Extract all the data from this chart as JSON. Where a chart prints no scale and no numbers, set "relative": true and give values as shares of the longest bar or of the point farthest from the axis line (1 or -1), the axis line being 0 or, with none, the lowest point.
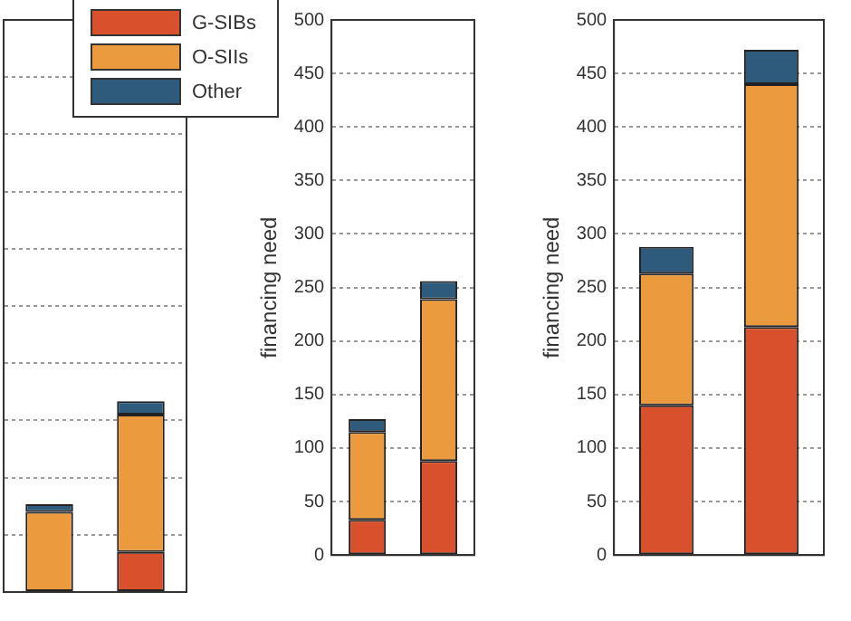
{
  "chart_data": [
    {
      "type": "bar",
      "stacked": true,
      "relative": true,
      "categories": [
        null,
        null
      ],
      "tick_labels": false,
      "grid": "y",
      "legend": "top right",
      "series": [
        {
          "name": "G-SIBs",
          "color": "#d8502c",
          "values": [
            null,
            0.21
          ]
        },
        {
          "name": "O-SIIs",
          "color": "#ec9a3e",
          "values": [
            0.42,
            0.72
          ]
        },
        {
          "name": "Other",
          "color": "#2e5a7c",
          "values": [
            0.04,
            0.07
          ]
        }
      ]
    },
    {
      "type": "bar",
      "stacked": true,
      "categories": [
        null,
        null
      ],
      "ylim": [
        0,
        500
      ],
      "yticks": [
        0,
        50,
        100,
        150,
        200,
        250,
        300,
        350,
        400,
        450,
        500
      ],
      "ylabel": "financing need",
      "grid": "y",
      "series": [
        {
          "color": "#d8502c",
          "values": [
            33,
            88
          ]
        },
        {
          "color": "#ec9a3e",
          "values": [
            82,
            151
          ]
        },
        {
          "color": "#2e5a7c",
          "values": [
            12,
            17
          ]
        }
      ]
    },
    {
      "type": "bar",
      "stacked": true,
      "categories": [
        null,
        null
      ],
      "ylim": [
        0,
        500
      ],
      "yticks": [
        0,
        50,
        100,
        150,
        200,
        250,
        300,
        350,
        400,
        450,
        500
      ],
      "ylabel": "financing need",
      "grid": "y",
      "series": [
        {
          "color": "#d8502c",
          "values": [
            140,
            213
          ]
        },
        {
          "color": "#ec9a3e",
          "values": [
            123,
            227
          ]
        },
        {
          "color": "#2e5a7c",
          "values": [
            25,
            32
          ]
        }
      ]
    }
  ]
}
